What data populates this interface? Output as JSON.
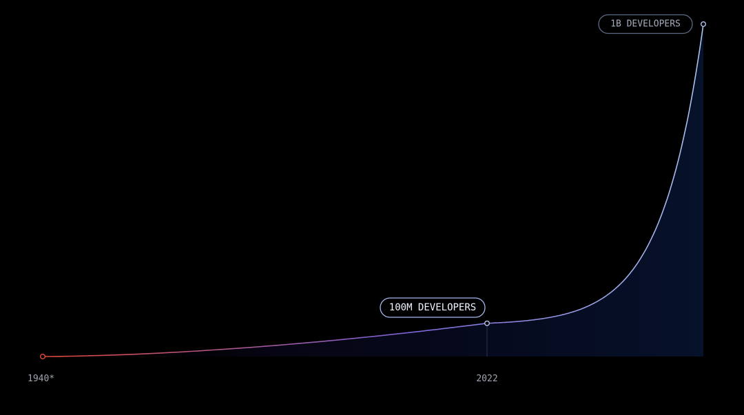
{
  "chart_data": {
    "type": "area",
    "title": "",
    "xlabel": "",
    "ylabel": "",
    "grid": false,
    "legend": "none",
    "x_ticks": [
      "1940*",
      "2022"
    ],
    "points": [
      {
        "x": "1940*",
        "y": 0,
        "label": ""
      },
      {
        "x": "2022",
        "y": 100000000,
        "label": "100M DEVELOPERS"
      },
      {
        "x": "",
        "y": 1000000000,
        "label": "1B DEVELOPERS"
      }
    ],
    "colors": {
      "start": "#e0483a",
      "middle": "#7c63d8",
      "end": "#aac4ec",
      "label_border_highlight": "#a9b7ee",
      "label_border_muted": "#5c6a84",
      "label_text_highlight": "#f2f4ff",
      "label_text_muted": "#a4acbc",
      "tick_text": "#a0a4b0",
      "fill": "#06112a"
    }
  }
}
